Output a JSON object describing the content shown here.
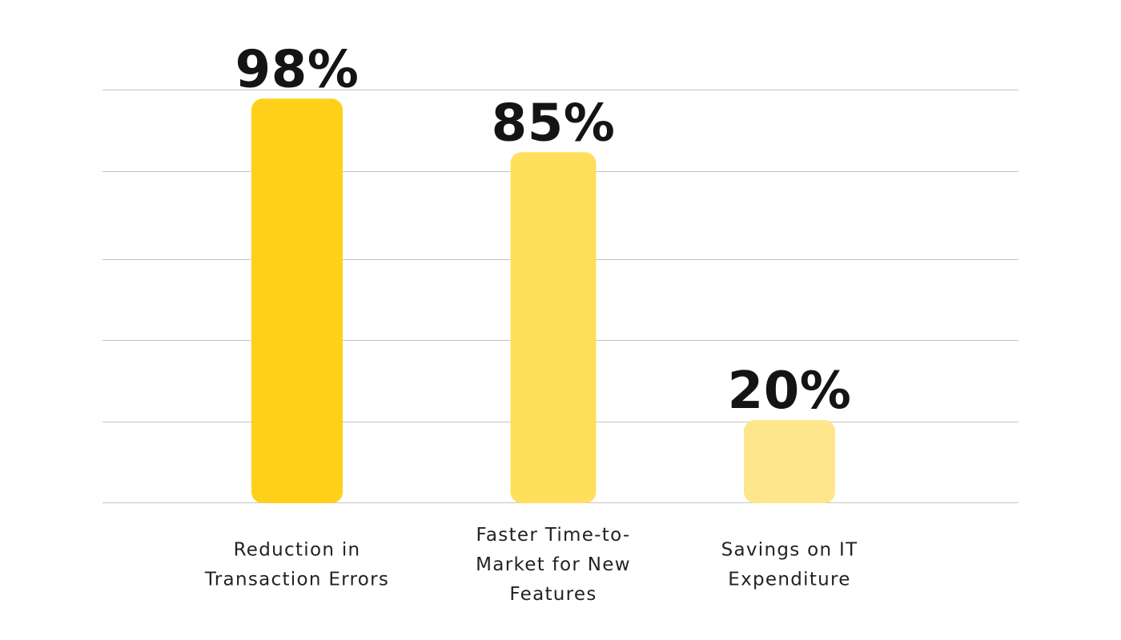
{
  "chart_data": {
    "type": "bar",
    "categories": [
      [
        "Reduction in",
        "Transaction Errors"
      ],
      [
        "Faster Time-to-",
        "Market for New",
        "Features"
      ],
      [
        "Savings on IT",
        "Expenditure"
      ]
    ],
    "values": [
      98,
      85,
      20
    ],
    "value_labels": [
      "98%",
      "85%",
      "20%"
    ],
    "bar_colors": [
      "#FFD01A",
      "#FFDF5C",
      "#FEE68C"
    ],
    "ylim": [
      0,
      100
    ],
    "grid": true,
    "title": "",
    "xlabel": "",
    "ylabel": ""
  }
}
